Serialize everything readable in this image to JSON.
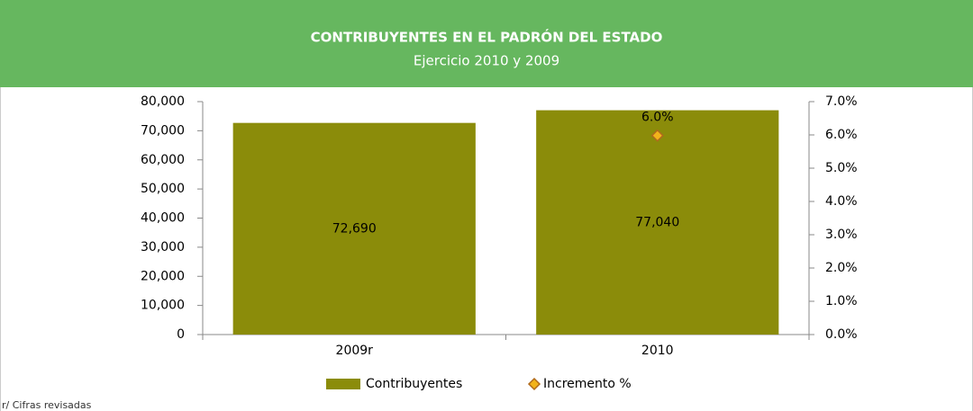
{
  "chart_data": {
    "type": "bar",
    "title": "CONTRIBUYENTES EN EL PADRÓN DEL ESTADO",
    "subtitle": "Ejercicio 2010 y 2009",
    "categories": [
      "2009r",
      "2010"
    ],
    "series": [
      {
        "name": "Contribuyentes",
        "color": "#8b8c0a",
        "values": [
          72690,
          77040
        ],
        "value_labels": [
          "72,690",
          "77,040"
        ]
      },
      {
        "name": "Incremento %",
        "color": "#f2b31b",
        "axis": "y2",
        "values": [
          null,
          5.98
        ],
        "value_labels": [
          null,
          "6.0%"
        ]
      }
    ],
    "ylim": [
      0,
      80000
    ],
    "yticks": [
      0,
      {
        "value": 10000,
        "label": "10,000"
      },
      {
        "value": 20000,
        "label": "20,000"
      },
      {
        "value": 30000,
        "label": "30,000"
      },
      {
        "value": 40000,
        "label": "40,000"
      },
      {
        "value": 50000,
        "label": "50,000"
      },
      {
        "value": 60000,
        "label": "60,000"
      },
      {
        "value": 70000,
        "label": "70,000"
      },
      {
        "value": 80000,
        "label": "80,000"
      }
    ],
    "y2lim": [
      0,
      7
    ],
    "y2ticks": [
      {
        "value": 0,
        "label": "0.0%"
      },
      {
        "value": 1,
        "label": "1.0%"
      },
      {
        "value": 2,
        "label": "2.0%"
      },
      {
        "value": 3,
        "label": "3.0%"
      },
      {
        "value": 4,
        "label": "4.0%"
      },
      {
        "value": 5,
        "label": "5.0%"
      },
      {
        "value": 6,
        "label": "6.0%"
      },
      {
        "value": 7,
        "label": "7.0%"
      }
    ],
    "grid": false,
    "legend": "bottom",
    "note": "r/ Cifras revisadas"
  }
}
